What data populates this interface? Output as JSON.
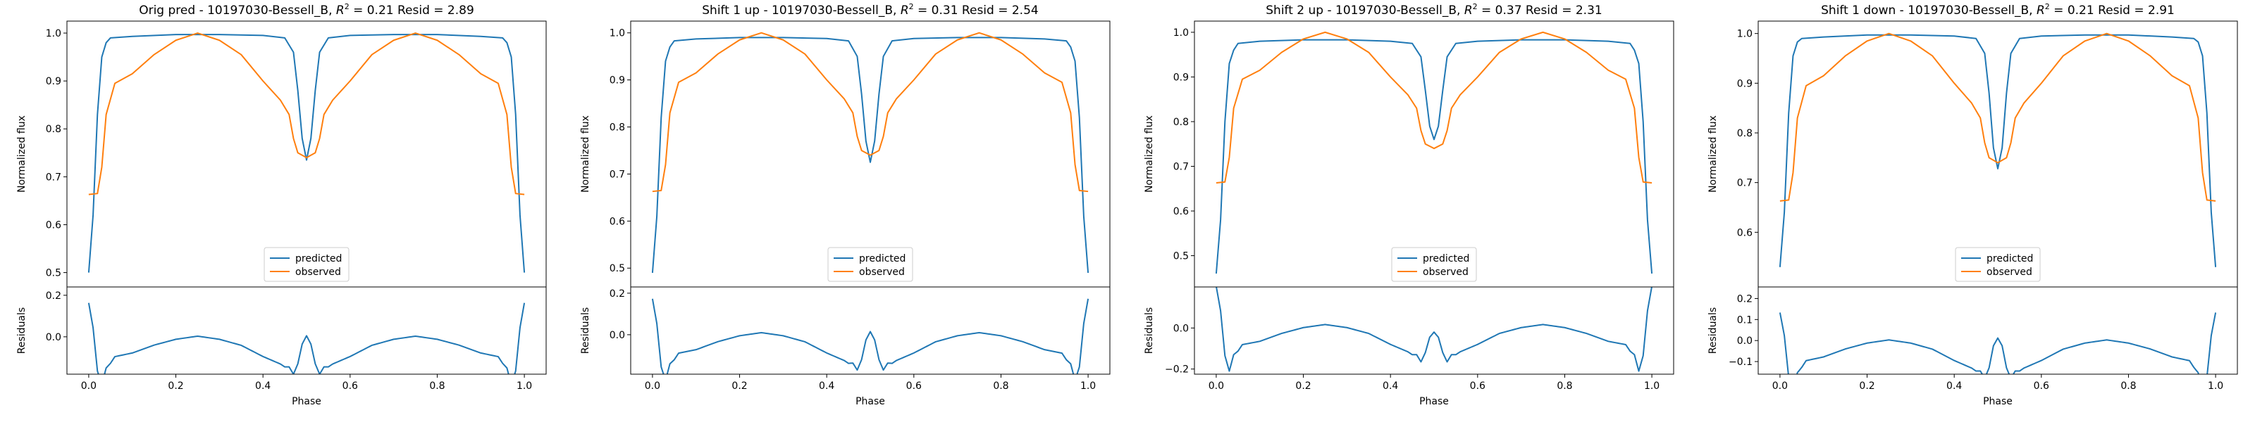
{
  "colors": {
    "predicted": "#1f77b4",
    "observed": "#ff7f0e",
    "axes": "#000000",
    "legend_border": "#cccccc"
  },
  "chart_data": [
    {
      "type": "line",
      "title_prefix": "Orig pred - 10197030-Bessell_B, ",
      "r2_symbol": "R",
      "r2_sup": "2",
      "title_suffix": " = 0.21 Resid = 2.89",
      "shift": 0.0,
      "xlabel": "Phase",
      "ylabel_top": "Normalized flux",
      "ylabel_bottom": "Residuals",
      "xlim": [
        -0.05,
        1.05
      ],
      "ylim_top": [
        0.47,
        1.025
      ],
      "ylim_bottom": [
        -0.18,
        0.24
      ],
      "xticks": [
        0.0,
        0.2,
        0.4,
        0.6,
        0.8,
        1.0
      ],
      "xtick_labels": [
        "0.0",
        "0.2",
        "0.4",
        "0.6",
        "0.8",
        "1.0"
      ],
      "yticks_top": [
        0.5,
        0.6,
        0.7,
        0.8,
        0.9,
        1.0
      ],
      "ytick_labels_top": [
        "0.5",
        "0.6",
        "0.7",
        "0.8",
        "0.9",
        "1.0"
      ],
      "yticks_bottom": [
        0.0,
        0.2
      ],
      "ytick_labels_bottom": [
        "0.0",
        "0.2"
      ],
      "legend": [
        "predicted",
        "observed"
      ],
      "legend_position": "lower-center",
      "series": [
        {
          "name": "predicted",
          "x": [
            0.0,
            0.01,
            0.02,
            0.03,
            0.04,
            0.05,
            0.1,
            0.2,
            0.3,
            0.4,
            0.45,
            0.47,
            0.48,
            0.49,
            0.5,
            0.51,
            0.52,
            0.53,
            0.55,
            0.6,
            0.7,
            0.8,
            0.9,
            0.95,
            0.96,
            0.97,
            0.98,
            0.99,
            1.0
          ],
          "y": [
            0.5,
            0.62,
            0.83,
            0.95,
            0.98,
            0.99,
            0.993,
            0.997,
            0.997,
            0.995,
            0.99,
            0.96,
            0.88,
            0.78,
            0.735,
            0.78,
            0.88,
            0.96,
            0.99,
            0.995,
            0.997,
            0.997,
            0.993,
            0.99,
            0.98,
            0.95,
            0.83,
            0.62,
            0.5
          ]
        },
        {
          "name": "observed",
          "x": [
            0.0,
            0.02,
            0.03,
            0.04,
            0.06,
            0.1,
            0.15,
            0.2,
            0.25,
            0.3,
            0.35,
            0.4,
            0.44,
            0.46,
            0.47,
            0.48,
            0.5,
            0.52,
            0.53,
            0.54,
            0.56,
            0.6,
            0.65,
            0.7,
            0.75,
            0.8,
            0.85,
            0.9,
            0.94,
            0.96,
            0.97,
            0.98,
            1.0
          ],
          "y": [
            0.663,
            0.665,
            0.72,
            0.83,
            0.895,
            0.915,
            0.955,
            0.985,
            1.0,
            0.985,
            0.955,
            0.9,
            0.86,
            0.83,
            0.78,
            0.75,
            0.74,
            0.75,
            0.78,
            0.83,
            0.86,
            0.9,
            0.955,
            0.985,
            1.0,
            0.985,
            0.955,
            0.915,
            0.895,
            0.83,
            0.72,
            0.665,
            0.663
          ]
        }
      ]
    },
    {
      "type": "line",
      "title_prefix": "Shift 1 up - 10197030-Bessell_B, ",
      "r2_symbol": "R",
      "r2_sup": "2",
      "title_suffix": " = 0.31 Resid = 2.54",
      "shift": -0.01,
      "xlabel": "Phase",
      "ylabel_top": "Normalized flux",
      "ylabel_bottom": "Residuals",
      "xlim": [
        -0.05,
        1.05
      ],
      "ylim_top": [
        0.46,
        1.025
      ],
      "ylim_bottom": [
        -0.19,
        0.23
      ],
      "xticks": [
        0.0,
        0.2,
        0.4,
        0.6,
        0.8,
        1.0
      ],
      "xtick_labels": [
        "0.0",
        "0.2",
        "0.4",
        "0.6",
        "0.8",
        "1.0"
      ],
      "yticks_top": [
        0.5,
        0.6,
        0.7,
        0.8,
        0.9,
        1.0
      ],
      "ytick_labels_top": [
        "0.5",
        "0.6",
        "0.7",
        "0.8",
        "0.9",
        "1.0"
      ],
      "yticks_bottom": [
        0.0,
        0.2
      ],
      "ytick_labels_bottom": [
        "0.0",
        "0.2"
      ],
      "legend": [
        "predicted",
        "observed"
      ],
      "legend_position": "lower-center",
      "series": [
        {
          "name": "predicted",
          "x": [
            0.0,
            0.01,
            0.02,
            0.03,
            0.04,
            0.05,
            0.1,
            0.2,
            0.3,
            0.4,
            0.45,
            0.47,
            0.48,
            0.49,
            0.5,
            0.51,
            0.52,
            0.53,
            0.55,
            0.6,
            0.7,
            0.8,
            0.9,
            0.95,
            0.96,
            0.97,
            0.98,
            0.99,
            1.0
          ],
          "y": [
            0.49,
            0.61,
            0.82,
            0.94,
            0.97,
            0.983,
            0.987,
            0.99,
            0.99,
            0.988,
            0.983,
            0.95,
            0.87,
            0.77,
            0.725,
            0.77,
            0.87,
            0.95,
            0.983,
            0.988,
            0.99,
            0.99,
            0.987,
            0.983,
            0.97,
            0.94,
            0.82,
            0.61,
            0.49
          ]
        },
        {
          "name": "observed",
          "x": [
            0.0,
            0.02,
            0.03,
            0.04,
            0.06,
            0.1,
            0.15,
            0.2,
            0.25,
            0.3,
            0.35,
            0.4,
            0.44,
            0.46,
            0.47,
            0.48,
            0.5,
            0.52,
            0.53,
            0.54,
            0.56,
            0.6,
            0.65,
            0.7,
            0.75,
            0.8,
            0.85,
            0.9,
            0.94,
            0.96,
            0.97,
            0.98,
            1.0
          ],
          "y": [
            0.663,
            0.665,
            0.72,
            0.83,
            0.895,
            0.915,
            0.955,
            0.985,
            1.0,
            0.985,
            0.955,
            0.9,
            0.86,
            0.83,
            0.78,
            0.75,
            0.74,
            0.75,
            0.78,
            0.83,
            0.86,
            0.9,
            0.955,
            0.985,
            1.0,
            0.985,
            0.955,
            0.915,
            0.895,
            0.83,
            0.72,
            0.665,
            0.663
          ]
        }
      ]
    },
    {
      "type": "line",
      "title_prefix": "Shift 2 up - 10197030-Bessell_B, ",
      "r2_symbol": "R",
      "r2_sup": "2",
      "title_suffix": " = 0.37 Resid = 2.31",
      "shift": -0.02,
      "xlabel": "Phase",
      "ylabel_top": "Normalized flux",
      "ylabel_bottom": "Residuals",
      "xlim": [
        -0.05,
        1.05
      ],
      "ylim_top": [
        0.43,
        1.025
      ],
      "ylim_bottom": [
        -0.225,
        0.2
      ],
      "xticks": [
        0.0,
        0.2,
        0.4,
        0.6,
        0.8,
        1.0
      ],
      "xtick_labels": [
        "0.0",
        "0.2",
        "0.4",
        "0.6",
        "0.8",
        "1.0"
      ],
      "yticks_top": [
        0.5,
        0.6,
        0.7,
        0.8,
        0.9,
        1.0
      ],
      "ytick_labels_top": [
        "0.5",
        "0.6",
        "0.7",
        "0.8",
        "0.9",
        "1.0"
      ],
      "yticks_bottom": [
        -0.2,
        0.0
      ],
      "ytick_labels_bottom": [
        "−0.2",
        "0.0"
      ],
      "legend": [
        "predicted",
        "observed"
      ],
      "legend_position": "lower-center",
      "series": [
        {
          "name": "predicted",
          "x": [
            0.0,
            0.01,
            0.02,
            0.03,
            0.04,
            0.05,
            0.1,
            0.2,
            0.3,
            0.4,
            0.45,
            0.47,
            0.48,
            0.49,
            0.5,
            0.51,
            0.52,
            0.53,
            0.55,
            0.6,
            0.7,
            0.8,
            0.9,
            0.95,
            0.96,
            0.97,
            0.98,
            0.99,
            1.0
          ],
          "y": [
            0.46,
            0.58,
            0.8,
            0.93,
            0.96,
            0.975,
            0.98,
            0.983,
            0.983,
            0.98,
            0.975,
            0.945,
            0.87,
            0.79,
            0.76,
            0.79,
            0.87,
            0.945,
            0.975,
            0.98,
            0.983,
            0.983,
            0.98,
            0.975,
            0.96,
            0.93,
            0.8,
            0.58,
            0.46
          ]
        },
        {
          "name": "observed",
          "x": [
            0.0,
            0.02,
            0.03,
            0.04,
            0.06,
            0.1,
            0.15,
            0.2,
            0.25,
            0.3,
            0.35,
            0.4,
            0.44,
            0.46,
            0.47,
            0.48,
            0.5,
            0.52,
            0.53,
            0.54,
            0.56,
            0.6,
            0.65,
            0.7,
            0.75,
            0.8,
            0.85,
            0.9,
            0.94,
            0.96,
            0.97,
            0.98,
            1.0
          ],
          "y": [
            0.663,
            0.665,
            0.72,
            0.83,
            0.895,
            0.915,
            0.955,
            0.985,
            1.0,
            0.985,
            0.955,
            0.9,
            0.86,
            0.83,
            0.78,
            0.75,
            0.74,
            0.75,
            0.78,
            0.83,
            0.86,
            0.9,
            0.955,
            0.985,
            1.0,
            0.985,
            0.955,
            0.915,
            0.895,
            0.83,
            0.72,
            0.665,
            0.663
          ]
        }
      ]
    },
    {
      "type": "line",
      "title_prefix": "Shift 1 down - 10197030-Bessell_B, ",
      "r2_symbol": "R",
      "r2_sup": "2",
      "title_suffix": " = 0.21 Resid = 2.91",
      "shift": 0.01,
      "xlabel": "Phase",
      "ylabel_top": "Normalized flux",
      "ylabel_bottom": "Residuals",
      "xlim": [
        -0.05,
        1.05
      ],
      "ylim_top": [
        0.49,
        1.025
      ],
      "ylim_bottom": [
        -0.16,
        0.255
      ],
      "xticks": [
        0.0,
        0.2,
        0.4,
        0.6,
        0.8,
        1.0
      ],
      "xtick_labels": [
        "0.0",
        "0.2",
        "0.4",
        "0.6",
        "0.8",
        "1.0"
      ],
      "yticks_top": [
        0.6,
        0.7,
        0.8,
        0.9,
        1.0
      ],
      "ytick_labels_top": [
        "0.6",
        "0.7",
        "0.8",
        "0.9",
        "1.0"
      ],
      "yticks_bottom": [
        -0.1,
        0.0,
        0.1,
        0.2
      ],
      "ytick_labels_bottom": [
        "−0.1",
        "0.0",
        "0.1",
        "0.2"
      ],
      "legend": [
        "predicted",
        "observed"
      ],
      "legend_position": "lower-center",
      "series": [
        {
          "name": "predicted",
          "x": [
            0.0,
            0.01,
            0.02,
            0.03,
            0.04,
            0.05,
            0.1,
            0.2,
            0.3,
            0.4,
            0.45,
            0.47,
            0.48,
            0.49,
            0.5,
            0.51,
            0.52,
            0.53,
            0.55,
            0.6,
            0.7,
            0.8,
            0.9,
            0.95,
            0.96,
            0.97,
            0.98,
            0.99,
            1.0
          ],
          "y": [
            0.53,
            0.64,
            0.84,
            0.955,
            0.983,
            0.99,
            0.993,
            0.997,
            0.997,
            0.995,
            0.99,
            0.96,
            0.88,
            0.77,
            0.728,
            0.77,
            0.88,
            0.96,
            0.99,
            0.995,
            0.997,
            0.997,
            0.993,
            0.99,
            0.983,
            0.955,
            0.84,
            0.64,
            0.53
          ]
        },
        {
          "name": "observed",
          "x": [
            0.0,
            0.02,
            0.03,
            0.04,
            0.06,
            0.1,
            0.15,
            0.2,
            0.25,
            0.3,
            0.35,
            0.4,
            0.44,
            0.46,
            0.47,
            0.48,
            0.5,
            0.52,
            0.53,
            0.54,
            0.56,
            0.6,
            0.65,
            0.7,
            0.75,
            0.8,
            0.85,
            0.9,
            0.94,
            0.96,
            0.97,
            0.98,
            1.0
          ],
          "y": [
            0.663,
            0.665,
            0.72,
            0.83,
            0.895,
            0.915,
            0.955,
            0.985,
            1.0,
            0.985,
            0.955,
            0.9,
            0.86,
            0.83,
            0.78,
            0.75,
            0.74,
            0.75,
            0.78,
            0.83,
            0.86,
            0.9,
            0.955,
            0.985,
            1.0,
            0.985,
            0.955,
            0.915,
            0.895,
            0.83,
            0.72,
            0.665,
            0.663
          ]
        }
      ]
    }
  ]
}
